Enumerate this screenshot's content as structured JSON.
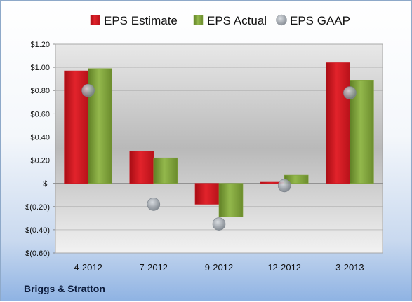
{
  "company": "Briggs & Stratton",
  "colors": {
    "estimate": "#c9151e",
    "actual": "#7fa23a",
    "gaap": "#9aa3ad"
  },
  "chart_data": {
    "type": "bar",
    "categories": [
      "4-2012",
      "7-2012",
      "9-2012",
      "12-2012",
      "3-2013"
    ],
    "series": [
      {
        "name": "EPS Estimate",
        "kind": "bar",
        "values": [
          0.97,
          0.28,
          -0.18,
          0.01,
          1.04
        ]
      },
      {
        "name": "EPS Actual",
        "kind": "bar",
        "values": [
          0.99,
          0.22,
          -0.29,
          0.07,
          0.89
        ]
      },
      {
        "name": "EPS GAAP",
        "kind": "scatter",
        "values": [
          0.8,
          -0.18,
          -0.35,
          -0.02,
          0.78
        ]
      }
    ],
    "ylim": [
      -0.6,
      1.2
    ],
    "yticks": [
      1.2,
      1.0,
      0.8,
      0.6,
      0.4,
      0.2,
      0,
      -0.2,
      -0.4,
      -0.6
    ],
    "ytick_labels": [
      "$1.20",
      "$1.00",
      "$0.80",
      "$0.60",
      "$0.40",
      "$0.20",
      "$-",
      "$(0.20)",
      "$(0.40)",
      "$(0.60)"
    ],
    "legend_position": "top",
    "grid": true
  }
}
